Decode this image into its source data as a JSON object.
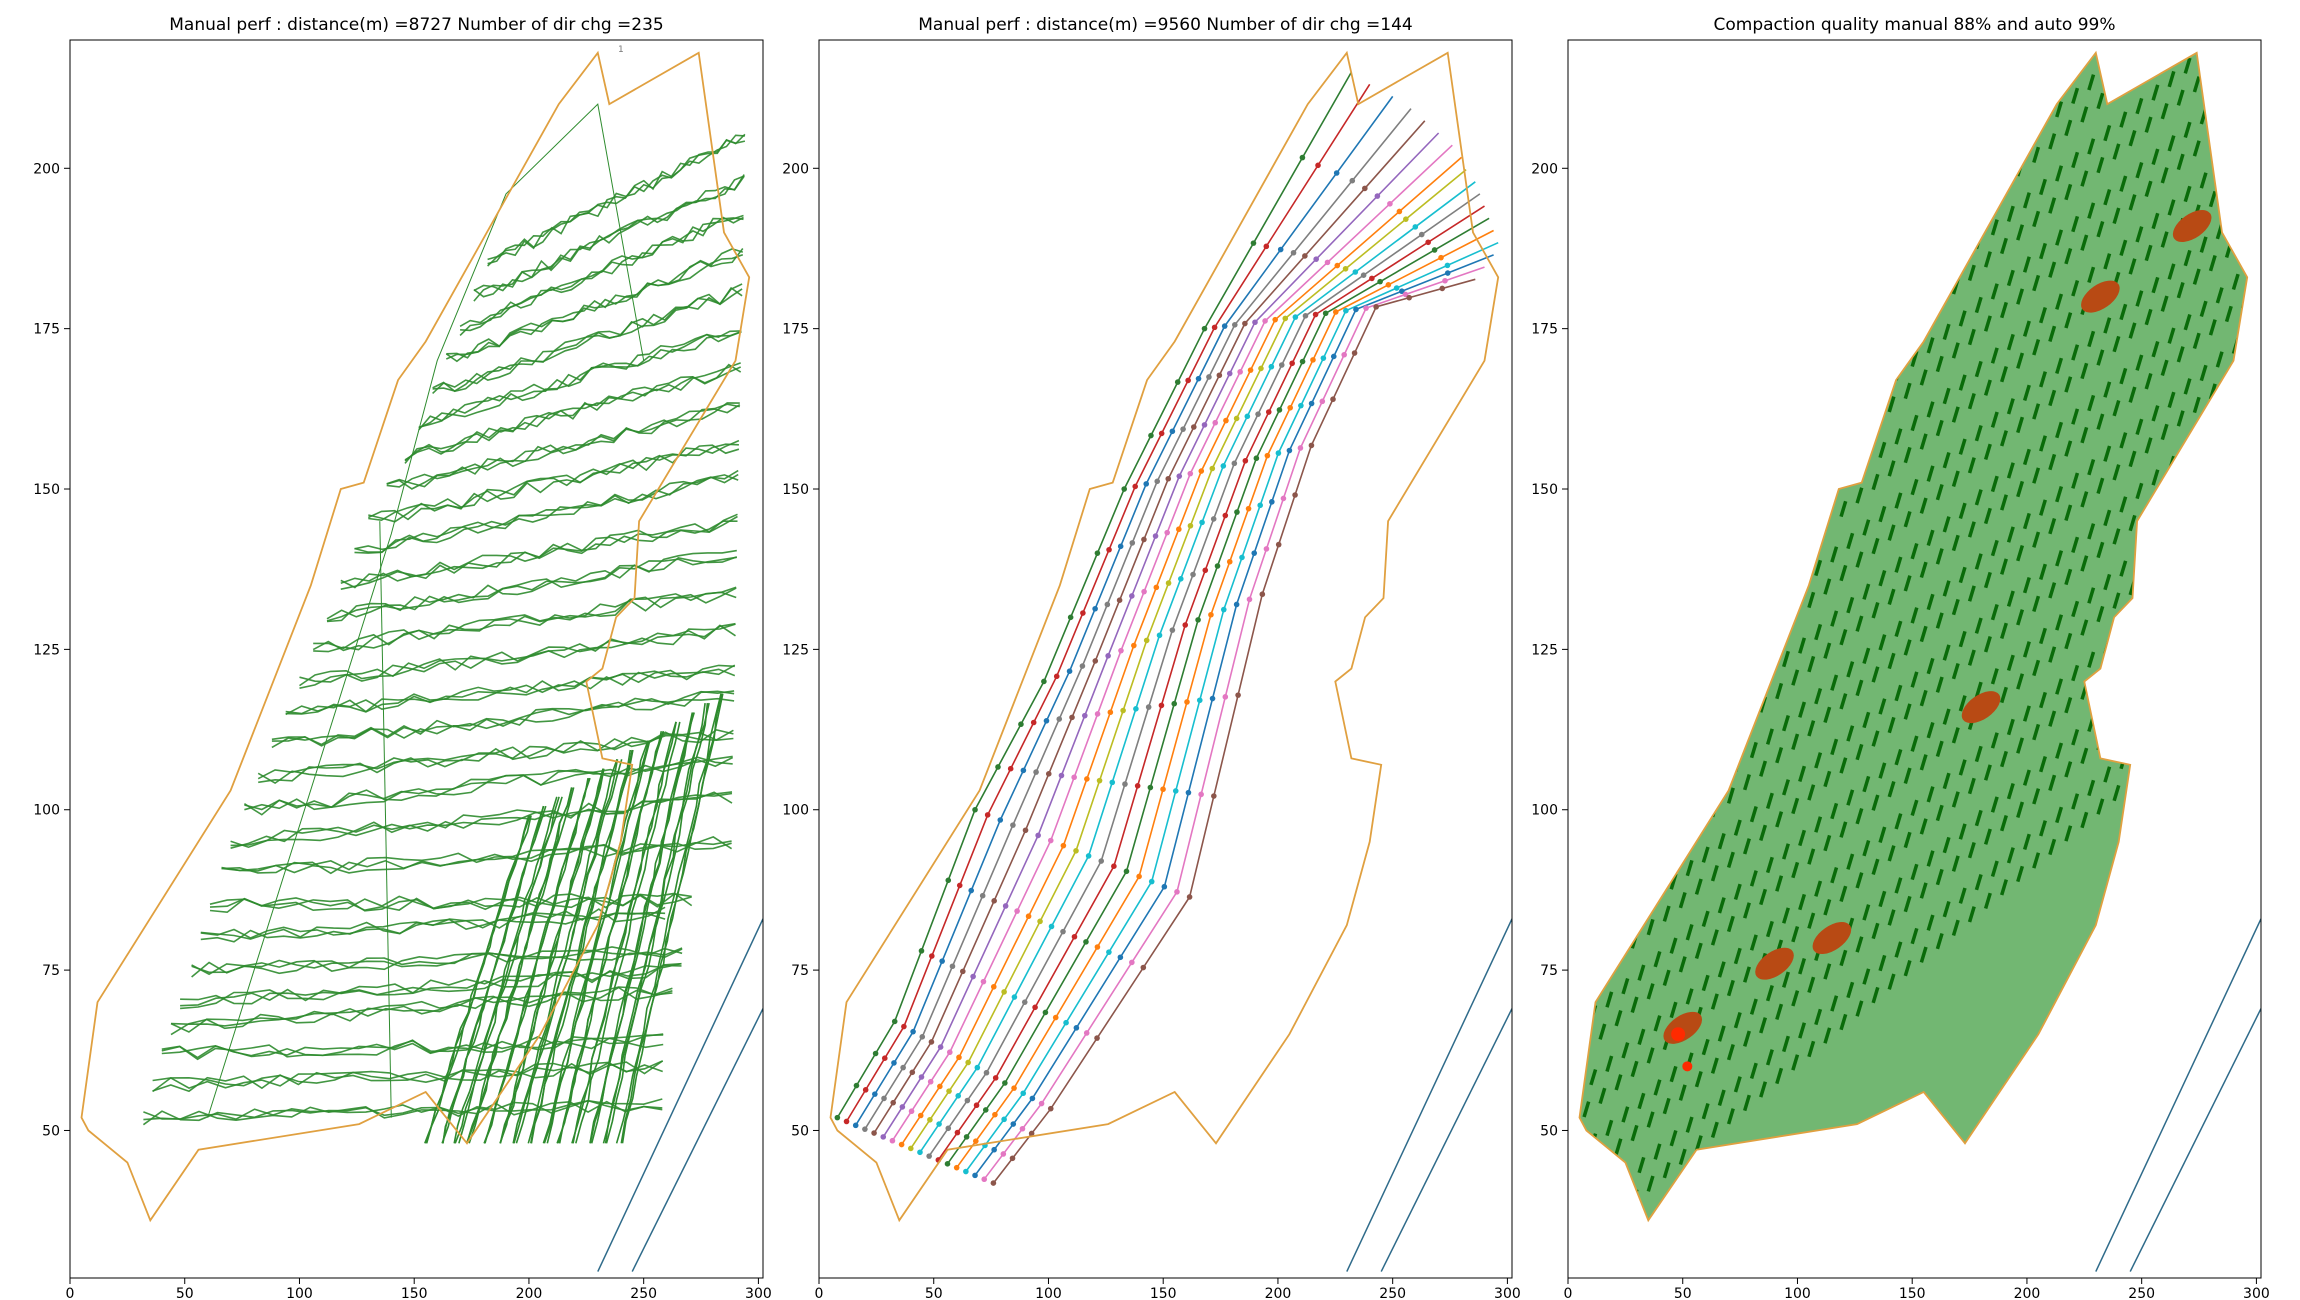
{
  "figure": {
    "panels": [
      {
        "title": "Manual perf : distance(m) =8727 Number of dir chg =235"
      },
      {
        "title": "Manual perf : distance(m) =9560 Number of dir chg =144"
      },
      {
        "title": "Compaction quality manual 88% and auto 99%"
      }
    ],
    "corner_mark": "1"
  },
  "colors": {
    "boundary": "#e0a040",
    "manual_track": "#2e8b2e",
    "road": "#2f6b8a",
    "coverage_fill": "#72b772",
    "coverage_stripe": "#0a6b0a",
    "defect": "#b84a14",
    "defect_core": "#ff2a00"
  },
  "chart_data": [
    {
      "type": "line",
      "title": "Manual perf : distance(m) =8727 Number of dir chg =235",
      "xlabel": "",
      "ylabel": "",
      "xlim": [
        0,
        302
      ],
      "ylim": [
        27,
        220
      ],
      "xticks": [
        0,
        50,
        100,
        150,
        200,
        250,
        300
      ],
      "yticks": [
        50,
        75,
        100,
        125,
        150,
        175,
        200
      ],
      "grid": false,
      "boundary": [
        [
          5,
          52
        ],
        [
          12,
          70
        ],
        [
          70,
          103
        ],
        [
          105,
          135
        ],
        [
          118,
          150
        ],
        [
          128,
          151
        ],
        [
          143,
          167
        ],
        [
          155,
          173
        ],
        [
          213,
          210
        ],
        [
          230,
          218
        ],
        [
          235,
          210
        ],
        [
          274,
          218
        ],
        [
          285,
          190
        ],
        [
          296,
          183
        ],
        [
          290,
          170
        ],
        [
          248,
          145
        ],
        [
          246,
          133
        ],
        [
          238,
          130
        ],
        [
          232,
          122
        ],
        [
          225,
          120
        ],
        [
          232,
          108
        ],
        [
          245,
          107
        ],
        [
          240,
          95
        ],
        [
          230,
          82
        ],
        [
          205,
          65
        ],
        [
          173,
          48
        ],
        [
          155,
          56
        ],
        [
          126,
          51
        ],
        [
          56,
          47
        ],
        [
          35,
          36
        ],
        [
          25,
          45
        ],
        [
          8,
          50
        ]
      ],
      "roads": [
        [
          [
            230,
            28
          ],
          [
            302,
            83
          ]
        ],
        [
          [
            245,
            28
          ],
          [
            302,
            69
          ]
        ]
      ],
      "tracks_upper": {
        "x_start": [
          32,
          36,
          40,
          44,
          48,
          53,
          57,
          61,
          66,
          70,
          76,
          82,
          88,
          94,
          100,
          106,
          112,
          118,
          124,
          130,
          138,
          146,
          152,
          158,
          164,
          170,
          176,
          182
        ],
        "x_end": [
          270,
          270,
          270,
          274,
          278,
          278,
          270,
          282,
          300,
          300,
          300,
          300,
          300,
          300,
          300,
          300,
          300,
          300,
          300,
          300,
          300,
          300,
          300,
          300,
          300,
          300,
          300,
          300
        ],
        "y_start": [
          52,
          57,
          62,
          66,
          70,
          75,
          80,
          85,
          90,
          95,
          100,
          105,
          110,
          115,
          120,
          125,
          130,
          135,
          140,
          145,
          150,
          155,
          160,
          165,
          170,
          175,
          180,
          185
        ],
        "y_end": [
          54,
          60,
          64,
          72,
          75,
          78,
          84,
          86,
          95,
          102,
          108,
          112,
          118,
          122,
          128,
          134,
          140,
          145,
          152,
          157,
          163,
          169,
          175,
          181,
          187,
          193,
          198,
          205
        ]
      },
      "tracks_lower": {
        "count": 14,
        "x_from": 155,
        "x_to": 250,
        "y_low": 48,
        "y_high": 121
      }
    },
    {
      "type": "line",
      "title": "Manual perf : distance(m) =9560 Number of dir chg =144",
      "xlabel": "",
      "ylabel": "",
      "xlim": [
        0,
        302
      ],
      "ylim": [
        27,
        220
      ],
      "xticks": [
        0,
        50,
        100,
        150,
        200,
        250,
        300
      ],
      "yticks": [
        50,
        75,
        100,
        125,
        150,
        175,
        200
      ],
      "grid": false,
      "boundary": [
        [
          5,
          52
        ],
        [
          12,
          70
        ],
        [
          70,
          103
        ],
        [
          105,
          135
        ],
        [
          118,
          150
        ],
        [
          128,
          151
        ],
        [
          143,
          167
        ],
        [
          155,
          173
        ],
        [
          213,
          210
        ],
        [
          230,
          218
        ],
        [
          235,
          210
        ],
        [
          274,
          218
        ],
        [
          285,
          190
        ],
        [
          296,
          183
        ],
        [
          290,
          170
        ],
        [
          248,
          145
        ],
        [
          246,
          133
        ],
        [
          238,
          130
        ],
        [
          232,
          122
        ],
        [
          225,
          120
        ],
        [
          232,
          108
        ],
        [
          245,
          107
        ],
        [
          240,
          95
        ],
        [
          230,
          82
        ],
        [
          205,
          65
        ],
        [
          173,
          48
        ],
        [
          155,
          56
        ],
        [
          126,
          51
        ],
        [
          56,
          47
        ],
        [
          35,
          36
        ],
        [
          25,
          45
        ],
        [
          8,
          50
        ]
      ],
      "roads": [
        [
          [
            230,
            28
          ],
          [
            302,
            83
          ]
        ],
        [
          [
            245,
            28
          ],
          [
            302,
            69
          ]
        ]
      ],
      "passes": {
        "count": 18,
        "series_colors": [
          "#2e7d32",
          "#c62828",
          "#1f77b4",
          "#7f7f7f",
          "#8c564b",
          "#9467bd",
          "#e377c2",
          "#ff7f0e",
          "#bcbd22",
          "#17becf",
          "#7f7f7f",
          "#c62828",
          "#2e7d32",
          "#ff7f0e",
          "#17becf",
          "#1f77b4",
          "#e377c2",
          "#8c564b"
        ],
        "start_x": [
          8,
          12,
          16,
          20,
          24,
          28,
          32,
          36,
          40,
          44,
          48,
          52,
          56,
          60,
          64,
          68,
          72,
          76
        ],
        "end_x": [
          232,
          240,
          250,
          258,
          264,
          270,
          276,
          280,
          282,
          286,
          288,
          290,
          292,
          294,
          296,
          294,
          290,
          286
        ]
      }
    },
    {
      "type": "heatmap",
      "title": "Compaction quality manual 88% and auto 99%",
      "xlabel": "",
      "ylabel": "",
      "xlim": [
        0,
        302
      ],
      "ylim": [
        27,
        220
      ],
      "xticks": [
        0,
        50,
        100,
        150,
        200,
        250,
        300
      ],
      "yticks": [
        50,
        75,
        100,
        125,
        150,
        175,
        200
      ],
      "grid": false,
      "coverage_outline": [
        [
          5,
          52
        ],
        [
          12,
          70
        ],
        [
          70,
          103
        ],
        [
          105,
          135
        ],
        [
          118,
          150
        ],
        [
          128,
          151
        ],
        [
          143,
          167
        ],
        [
          155,
          173
        ],
        [
          213,
          210
        ],
        [
          230,
          218
        ],
        [
          235,
          210
        ],
        [
          274,
          218
        ],
        [
          285,
          190
        ],
        [
          296,
          183
        ],
        [
          290,
          170
        ],
        [
          248,
          145
        ],
        [
          246,
          133
        ],
        [
          238,
          130
        ],
        [
          232,
          122
        ],
        [
          225,
          120
        ],
        [
          232,
          108
        ],
        [
          245,
          107
        ],
        [
          240,
          95
        ],
        [
          230,
          82
        ],
        [
          205,
          65
        ],
        [
          173,
          48
        ],
        [
          155,
          56
        ],
        [
          126,
          51
        ],
        [
          56,
          47
        ],
        [
          35,
          36
        ],
        [
          25,
          45
        ],
        [
          8,
          50
        ]
      ],
      "roads": [
        [
          [
            230,
            28
          ],
          [
            302,
            83
          ]
        ],
        [
          [
            245,
            28
          ],
          [
            302,
            69
          ]
        ]
      ],
      "defects": [
        [
          50,
          66
        ],
        [
          90,
          76
        ],
        [
          115,
          80
        ],
        [
          180,
          116
        ],
        [
          232,
          180
        ],
        [
          272,
          191
        ]
      ],
      "manual_quality_pct": 88,
      "auto_quality_pct": 99
    }
  ]
}
